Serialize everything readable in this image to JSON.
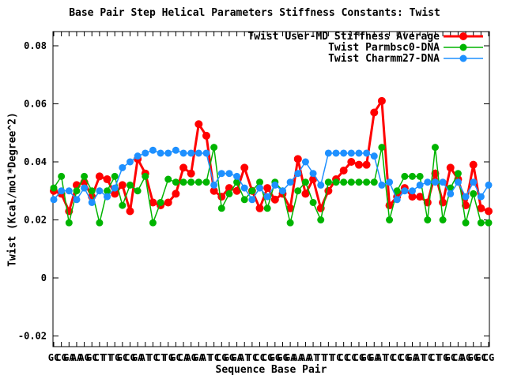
{
  "title": "Base Pair Step Helical Parameters Stiffness Constants: Twist",
  "x_axis": {
    "label": "Sequence Base Pair"
  },
  "y_axis": {
    "label": "Twist (Kcal/mol*Degree^2)",
    "ticks": [
      -0.02,
      0,
      0.02,
      0.04,
      0.06,
      0.08
    ]
  },
  "chart_data": {
    "type": "line",
    "title": "Base Pair Step Helical Parameters Stiffness Constants: Twist",
    "xlabel": "Sequence Base Pair",
    "ylabel": "Twist (Kcal/mol*Degree^2)",
    "ylim": [
      -0.024,
      0.085
    ],
    "grid": false,
    "legend_position": "top-right-inside",
    "categories": [
      "GC",
      "CG",
      "GA",
      "AA",
      "AG",
      "GC",
      "CT",
      "TT",
      "TG",
      "GC",
      "CG",
      "GA",
      "AT",
      "TC",
      "CT",
      "TG",
      "GC",
      "CA",
      "AG",
      "GA",
      "AT",
      "TC",
      "CG",
      "GG",
      "GA",
      "AT",
      "TC",
      "CC",
      "CG",
      "GG",
      "GG",
      "GA",
      "AA",
      "AA",
      "AT",
      "TT",
      "TT",
      "TC",
      "CC",
      "CC",
      "CG",
      "GG",
      "GA",
      "AT",
      "TC",
      "CC",
      "CG",
      "GA",
      "AT",
      "TC",
      "CT",
      "TG",
      "GC",
      "CA",
      "AG",
      "GG",
      "GC",
      "CG"
    ],
    "series": [
      {
        "name": "Twist User-MD Stiffness Average",
        "color": "#ff0000",
        "values": [
          0.03,
          0.029,
          0.023,
          0.032,
          0.033,
          0.028,
          0.035,
          0.034,
          0.029,
          0.032,
          0.023,
          0.041,
          0.036,
          0.026,
          0.025,
          0.026,
          0.029,
          0.038,
          0.036,
          0.053,
          0.049,
          0.03,
          0.028,
          0.031,
          0.03,
          0.038,
          0.03,
          0.024,
          0.031,
          0.027,
          0.029,
          0.024,
          0.041,
          0.029,
          0.034,
          0.024,
          0.03,
          0.034,
          0.037,
          0.04,
          0.039,
          0.039,
          0.057,
          0.061,
          0.025,
          0.028,
          0.031,
          0.028,
          0.028,
          0.026,
          0.036,
          0.026,
          0.038,
          0.034,
          0.025,
          0.039,
          0.024,
          0.023
        ]
      },
      {
        "name": "Twist Parmbsc0-DNA",
        "color": "#00b400",
        "values": [
          0.031,
          0.035,
          0.019,
          0.03,
          0.035,
          0.03,
          0.019,
          0.03,
          0.035,
          0.025,
          0.032,
          0.03,
          0.035,
          0.019,
          0.026,
          0.034,
          0.033,
          0.033,
          0.033,
          0.033,
          0.033,
          0.045,
          0.024,
          0.029,
          0.033,
          0.027,
          0.03,
          0.033,
          0.024,
          0.033,
          0.03,
          0.019,
          0.03,
          0.033,
          0.026,
          0.02,
          0.033,
          0.033,
          0.033,
          0.033,
          0.033,
          0.033,
          0.033,
          0.045,
          0.02,
          0.03,
          0.035,
          0.035,
          0.035,
          0.02,
          0.045,
          0.02,
          0.031,
          0.036,
          0.019,
          0.029,
          0.019,
          0.019
        ]
      },
      {
        "name": "Twist Charmm27-DNA",
        "color": "#1e90ff",
        "values": [
          0.027,
          0.03,
          0.03,
          0.027,
          0.031,
          0.026,
          0.03,
          0.028,
          0.031,
          0.038,
          0.04,
          0.042,
          0.043,
          0.044,
          0.043,
          0.043,
          0.044,
          0.043,
          0.043,
          0.043,
          0.043,
          0.032,
          0.036,
          0.036,
          0.035,
          0.031,
          0.027,
          0.031,
          0.028,
          0.032,
          0.03,
          0.033,
          0.036,
          0.04,
          0.036,
          0.032,
          0.043,
          0.043,
          0.043,
          0.043,
          0.043,
          0.043,
          0.042,
          0.032,
          0.033,
          0.027,
          0.03,
          0.03,
          0.032,
          0.033,
          0.033,
          0.033,
          0.029,
          0.033,
          0.028,
          0.033,
          0.028,
          0.032
        ]
      }
    ]
  }
}
